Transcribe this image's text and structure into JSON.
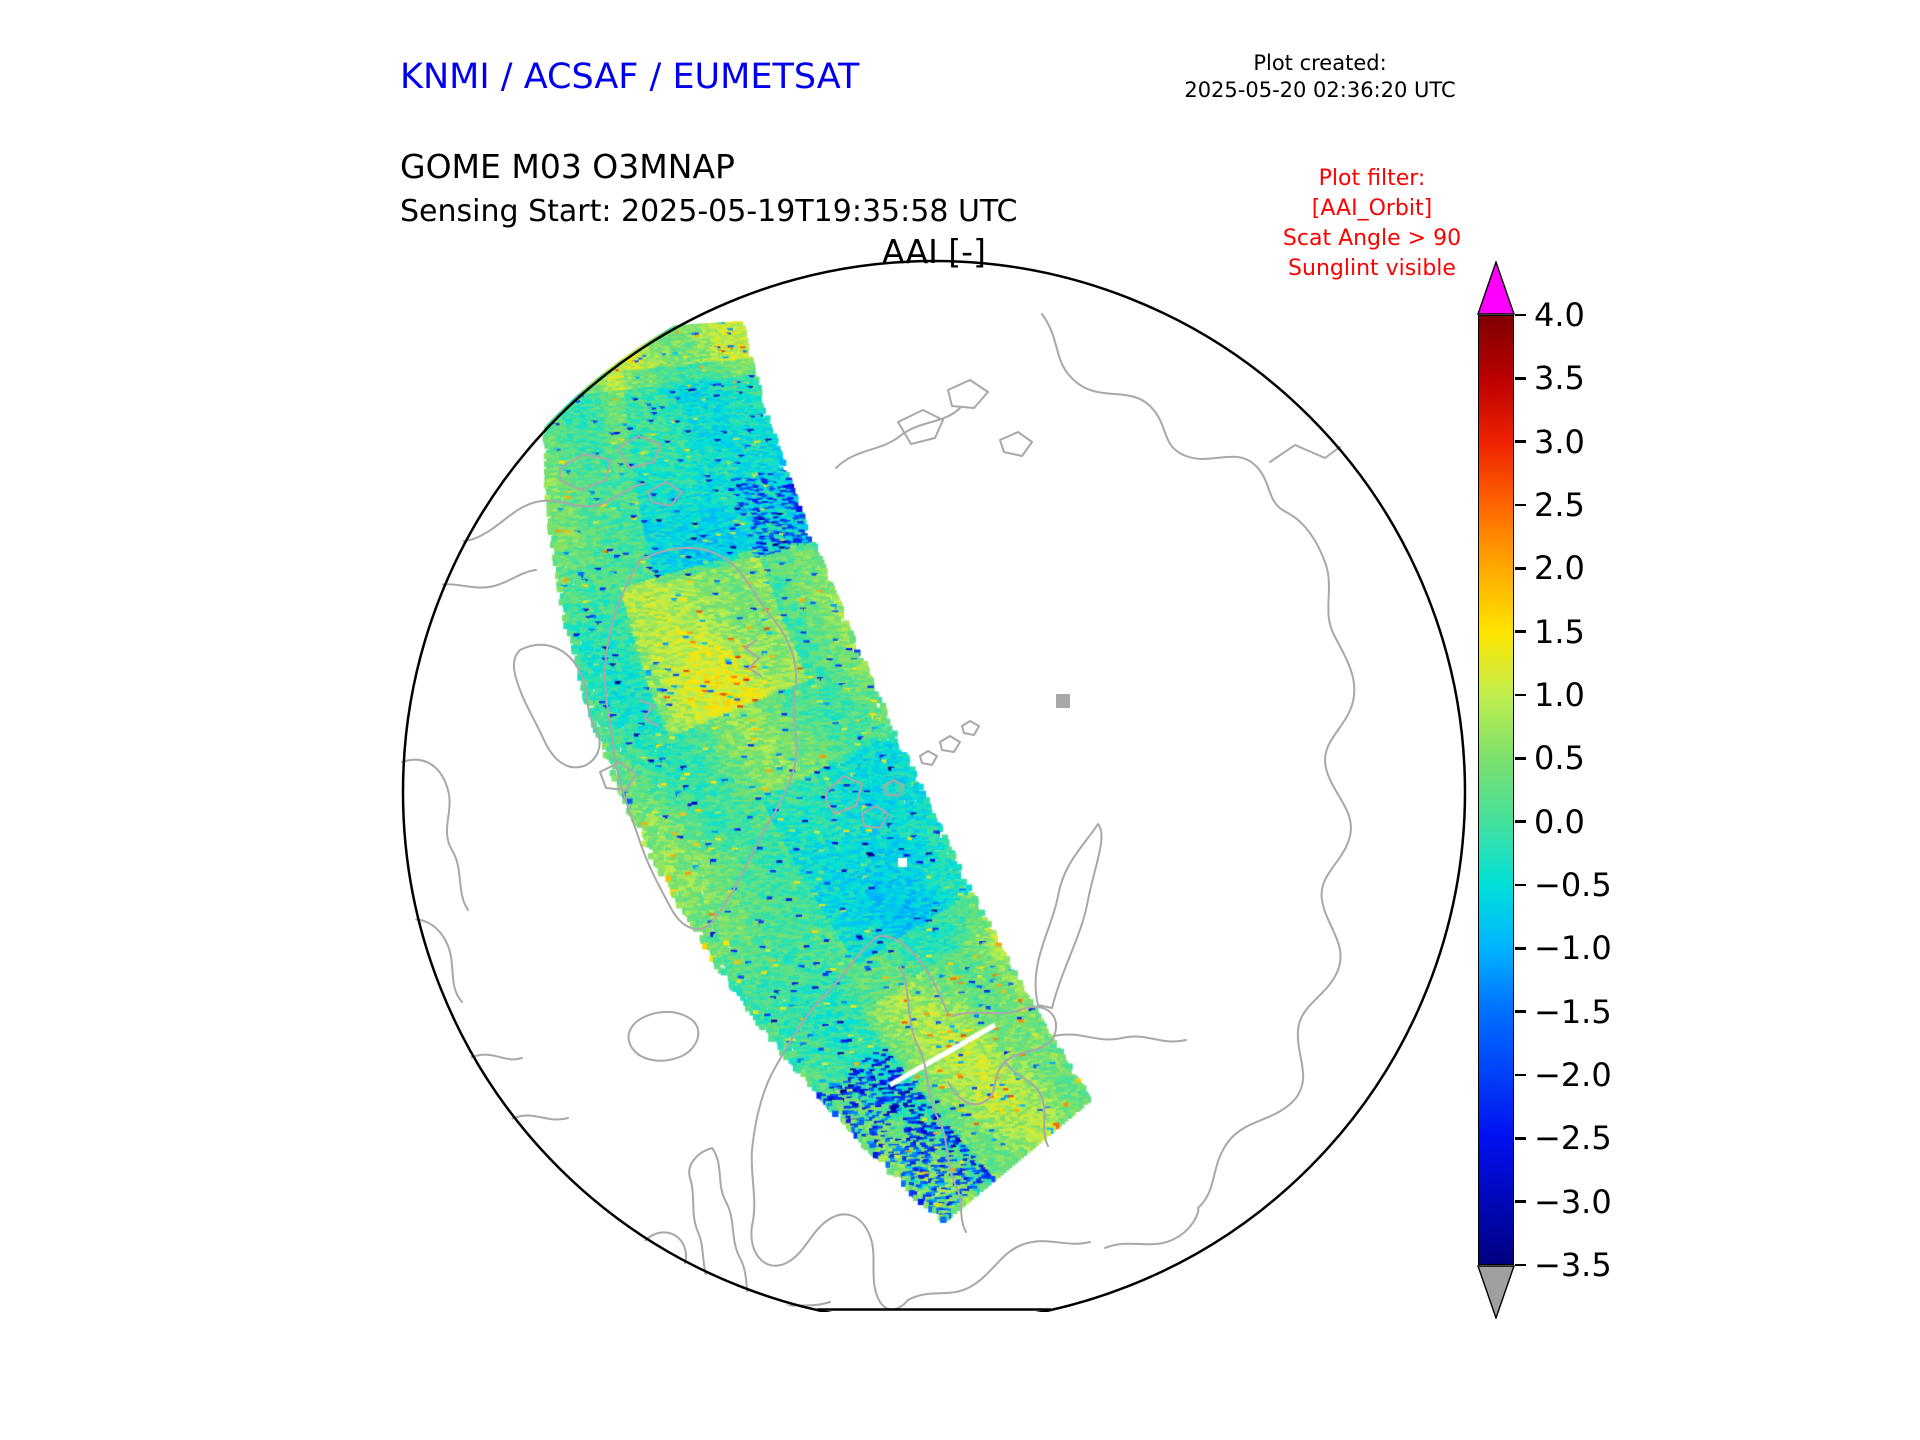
{
  "header": {
    "org_title": "KNMI / ACSAF / EUMETSAT",
    "plot_created_label": "Plot created:",
    "plot_created_value": "2025-05-20 02:36:20 UTC",
    "product_title": "GOME M03 O3MNAP",
    "sensing_start": "Sensing Start: 2025-05-19T19:35:58 UTC",
    "plot_title": "AAI [-]"
  },
  "plot_filter": {
    "lines": [
      "Plot filter:",
      "[AAI_Orbit]",
      "Scat Angle > 90",
      "Sunglint visible"
    ]
  },
  "colors": {
    "org_title": "#0000ee",
    "filter_text": "#ff0000",
    "coastline": "#a8a8a8",
    "map_outline": "#000000",
    "background": "#ffffff"
  },
  "chart_data": {
    "type": "heatmap",
    "title": "AAI [-]",
    "subtitle": "GOME M03 O3MNAP",
    "projection": "north polar stereographic map, circular frame with flat-cut bottom edge",
    "data_layer": {
      "description": "Single satellite orbit swath of Absorbing Aerosol Index crossing the polar cap from top-left to bottom-center",
      "typical_values": [
        -1.5,
        1.5
      ],
      "dominant_colors": [
        "green",
        "cyan",
        "yellow"
      ],
      "features": [
        "cyan/blue region in upper part of swath",
        "yellow-orange patch in upper-middle of swath",
        "dark blue speckles along left edge and lower-right of swath",
        "thin white data gap slash near bottom of swath"
      ]
    },
    "colorbar": {
      "min": -3.5,
      "max": 4.0,
      "tick_step": 0.5,
      "ticks": [
        4.0,
        3.5,
        3.0,
        2.5,
        2.0,
        1.5,
        1.0,
        0.5,
        0.0,
        -0.5,
        -1.0,
        -1.5,
        -2.0,
        -2.5,
        -3.0,
        -3.5
      ],
      "tick_labels": [
        "4.0",
        "3.5",
        "3.0",
        "2.5",
        "2.0",
        "1.5",
        "1.0",
        "0.5",
        "0.0",
        "−0.5",
        "−1.0",
        "−1.5",
        "−2.0",
        "−2.5",
        "−3.0",
        "−3.5"
      ],
      "over_arrow_color": "#ff00ff",
      "under_arrow_color": "#a0a0a0",
      "colormap_stops": [
        {
          "value": -3.5,
          "color": "#000080"
        },
        {
          "value": -2.5,
          "color": "#0010f0"
        },
        {
          "value": -1.5,
          "color": "#0070ff"
        },
        {
          "value": -1.0,
          "color": "#00b4ff"
        },
        {
          "value": -0.5,
          "color": "#00e0d8"
        },
        {
          "value": 0.0,
          "color": "#44e09c"
        },
        {
          "value": 0.5,
          "color": "#7ce06c"
        },
        {
          "value": 1.0,
          "color": "#c0ee4c"
        },
        {
          "value": 1.5,
          "color": "#ffe400"
        },
        {
          "value": 2.0,
          "color": "#ffaa00"
        },
        {
          "value": 2.5,
          "color": "#ff6600"
        },
        {
          "value": 3.0,
          "color": "#ee2200"
        },
        {
          "value": 3.5,
          "color": "#bb0000"
        },
        {
          "value": 4.0,
          "color": "#7f0000"
        }
      ]
    },
    "legend_position": "right vertical colorbar with over/under extension arrows"
  }
}
